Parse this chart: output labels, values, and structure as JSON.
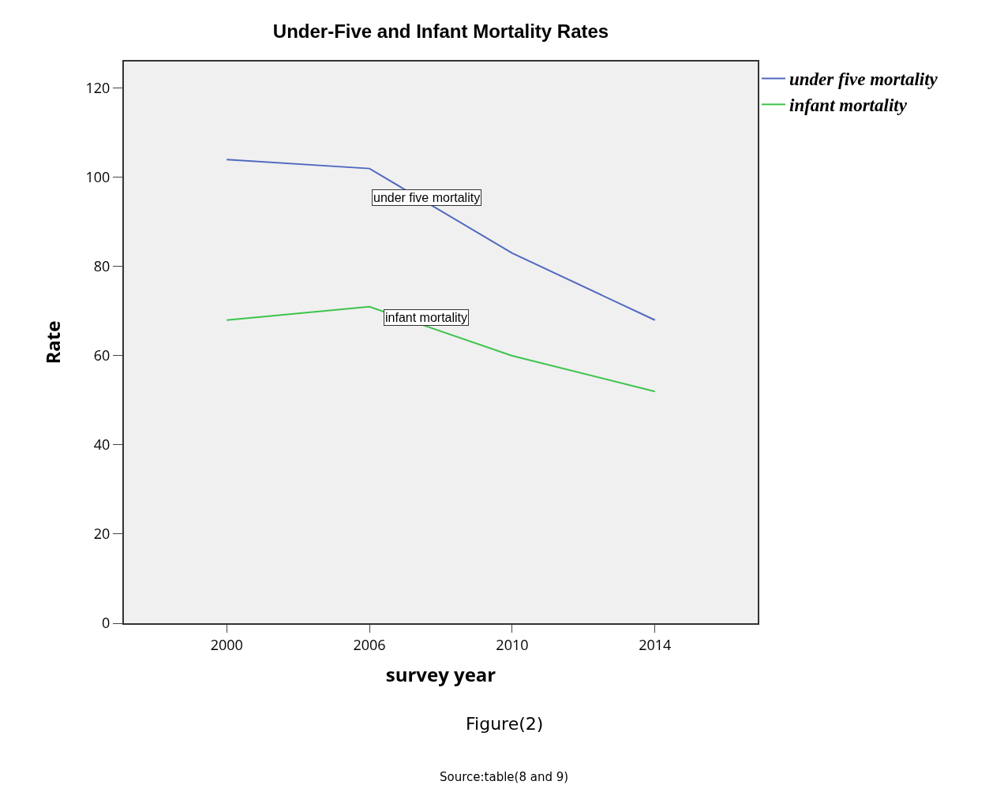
{
  "chart_data": {
    "type": "line",
    "title": "Under-Five and Infant Mortality Rates",
    "xlabel": "survey year",
    "ylabel": "Rate",
    "categories": [
      "2000",
      "2006",
      "2010",
      "2014"
    ],
    "series": [
      {
        "name": "under five mortality",
        "color": "#5068c0",
        "values": [
          104,
          102,
          83,
          68
        ]
      },
      {
        "name": "infant mortality",
        "color": "#3cc44c",
        "values": [
          68,
          71,
          60,
          52
        ]
      }
    ],
    "ylim": [
      0,
      126
    ],
    "yticks": [
      0,
      20,
      40,
      60,
      80,
      100,
      120
    ],
    "grid": false,
    "legend": "top right",
    "marker": "none",
    "line_style": "solid",
    "annotations": [
      "under five mortality",
      "infant mortality",
      "Figure(2)",
      "Source:table(8 and 9)"
    ]
  }
}
